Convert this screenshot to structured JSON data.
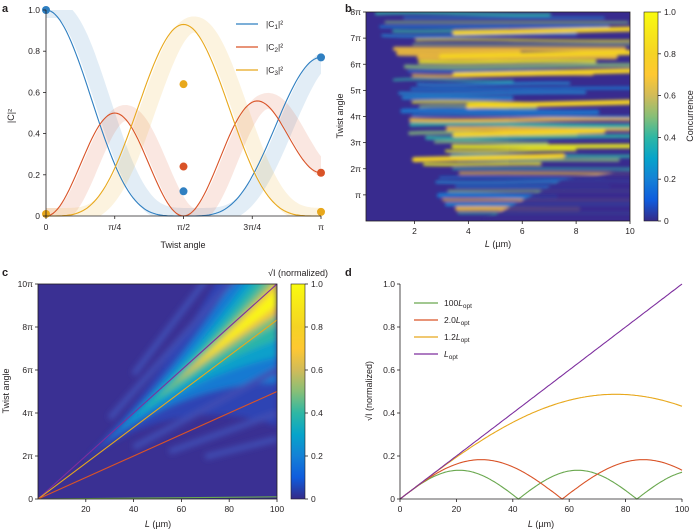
{
  "panels": {
    "a": "a",
    "b": "b",
    "c": "c",
    "d": "d"
  },
  "chart_data": [
    {
      "id": "a",
      "type": "line",
      "xlabel": "Twist angle",
      "ylabel": "|C|²",
      "xlim": [
        0,
        3.14159
      ],
      "ylim": [
        0,
        1.0
      ],
      "xticks": [
        0,
        0.7854,
        1.5708,
        2.3562,
        3.14159
      ],
      "xticklabels": [
        "0",
        "π/4",
        "π/2",
        "3π/4",
        "π"
      ],
      "yticks": [
        0,
        0.2,
        0.4,
        0.6,
        0.8,
        1.0
      ],
      "yticklabels": [
        "0",
        "0.2",
        "0.4",
        "0.6",
        "0.8",
        "1.0"
      ],
      "series": [
        {
          "name": "|C₁|²",
          "label_main": "|C",
          "label_sub": "1",
          "label_end": "|²",
          "color": "#2f7fc1"
        },
        {
          "name": "|C₂|²",
          "label_main": "|C",
          "label_sub": "2",
          "label_end": "|²",
          "color": "#d95327"
        },
        {
          "name": "|C₃|²",
          "label_main": "|C",
          "label_sub": "3",
          "label_end": "|²",
          "color": "#e8a81c"
        }
      ],
      "markers": [
        {
          "series": 0,
          "x": 0,
          "y": 1.0
        },
        {
          "series": 0,
          "x": 1.5708,
          "y": 0.12
        },
        {
          "series": 0,
          "x": 3.14159,
          "y": 0.77
        },
        {
          "series": 1,
          "x": 1.5708,
          "y": 0.24
        },
        {
          "series": 1,
          "x": 3.14159,
          "y": 0.21
        },
        {
          "series": 2,
          "x": 0,
          "y": 0.01
        },
        {
          "series": 2,
          "x": 1.5708,
          "y": 0.64
        },
        {
          "series": 2,
          "x": 3.14159,
          "y": 0.02
        }
      ]
    },
    {
      "id": "b",
      "type": "heatmap",
      "xlabel_main": "L",
      "xlabel_unit": " (µm)",
      "ylabel": "Twist angle",
      "xlim": [
        0.2,
        10
      ],
      "ylim": [
        0,
        8
      ],
      "xticks": [
        2,
        4,
        6,
        8,
        10
      ],
      "xticklabels": [
        "2",
        "4",
        "6",
        "8",
        "10"
      ],
      "yticks": [
        1,
        2,
        3,
        4,
        5,
        6,
        7,
        8
      ],
      "yticklabels": [
        "π",
        "2π",
        "3π",
        "4π",
        "5π",
        "6π",
        "7π",
        "8π"
      ],
      "colorbar_label": "Concurrence",
      "colorbar_ticks": [
        0,
        0.2,
        0.4,
        0.6,
        0.8,
        1.0
      ],
      "colorbar_ticklabels": [
        "0",
        "0.2",
        "0.4",
        "0.6",
        "0.8",
        "1.0"
      ]
    },
    {
      "id": "c",
      "type": "heatmap",
      "xlabel_main": "L",
      "xlabel_unit": " (µm)",
      "ylabel": "Twist angle",
      "xlim": [
        0,
        100
      ],
      "ylim": [
        0,
        10
      ],
      "xticks": [
        20,
        40,
        60,
        80,
        100
      ],
      "xticklabels": [
        "20",
        "40",
        "60",
        "80",
        "100"
      ],
      "yticks": [
        0,
        2,
        4,
        6,
        8,
        10
      ],
      "yticklabels": [
        "0",
        "2π",
        "4π",
        "6π",
        "8π",
        "10π"
      ],
      "colorbar_label": "√I (normalized)",
      "colorbar_ticks": [
        0,
        0.2,
        0.4,
        0.6,
        0.8,
        1.0
      ],
      "colorbar_ticklabels": [
        "0",
        "0.2",
        "0.4",
        "0.6",
        "0.8",
        "1.0"
      ],
      "overlay_lines": [
        {
          "name": "Lopt",
          "color": "#7d2e9e",
          "slope": 0.1
        },
        {
          "name": "1.2Lopt",
          "color": "#e8a81c",
          "slope": 0.0833
        },
        {
          "name": "2.0Lopt",
          "color": "#d95327",
          "slope": 0.05
        },
        {
          "name": "100Lopt",
          "color": "#6aa84f",
          "slope": 0.001
        }
      ]
    },
    {
      "id": "d",
      "type": "line",
      "xlabel_main": "L",
      "xlabel_unit": " (µm)",
      "ylabel": "√I (normalized)",
      "xlim": [
        0,
        100
      ],
      "ylim": [
        0,
        1.0
      ],
      "xticks": [
        0,
        20,
        40,
        60,
        80,
        100
      ],
      "xticklabels": [
        "0",
        "20",
        "40",
        "60",
        "80",
        "100"
      ],
      "yticks": [
        0,
        0.2,
        0.4,
        0.6,
        0.8,
        1.0
      ],
      "yticklabels": [
        "0",
        "0.2",
        "0.4",
        "0.6",
        "0.8",
        "1.0"
      ],
      "series": [
        {
          "name": "100Lopt",
          "label_main": "100",
          "label_italic": "L",
          "label_sub": "opt",
          "color": "#6aa84f",
          "period": 42
        },
        {
          "name": "2.0Lopt",
          "label_main": "2.0",
          "label_italic": "L",
          "label_sub": "opt",
          "color": "#d95327",
          "period": 57.5
        },
        {
          "name": "1.2Lopt",
          "label_main": "1.2",
          "label_italic": "L",
          "label_sub": "opt",
          "color": "#e8a81c",
          "period": 153
        },
        {
          "name": "Lopt",
          "label_main": "",
          "label_italic": "L",
          "label_sub": "opt",
          "color": "#7d2e9e",
          "period": 0
        }
      ]
    }
  ]
}
